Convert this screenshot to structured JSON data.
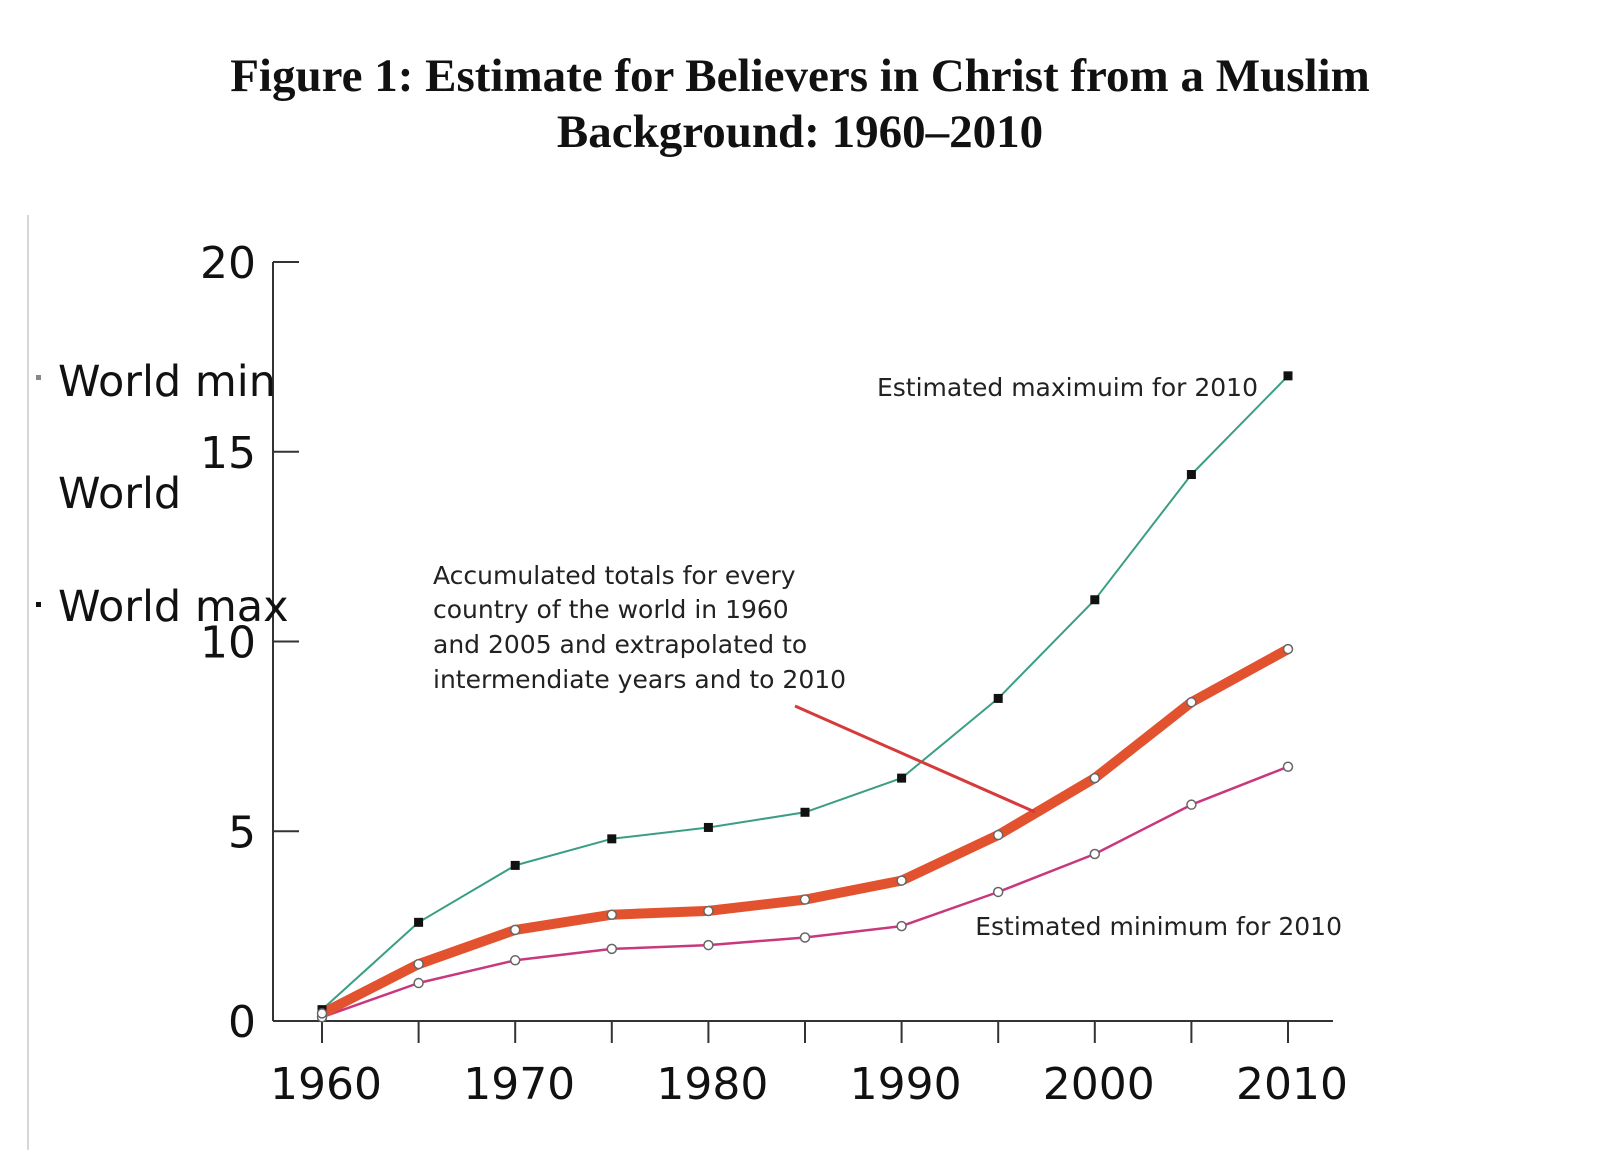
{
  "chart_data": {
    "type": "line",
    "title": "Figure 1: Estimate for Believers in Christ from a Muslim Background: 1960–2010",
    "title_lines": [
      "Figure 1: Estimate for Believers in Christ from a Muslim",
      "Background: 1960–2010"
    ],
    "xlabel": "",
    "ylabel": "",
    "x": [
      1960,
      1965,
      1970,
      1975,
      1980,
      1985,
      1990,
      1995,
      2000,
      2005,
      2010
    ],
    "xlim": [
      1960,
      2010
    ],
    "ylim": [
      0,
      20
    ],
    "x_ticks": [
      "1960",
      "1970",
      "1980",
      "1990",
      "2000",
      "2010"
    ],
    "y_ticks": [
      "0",
      "5",
      "10",
      "15",
      "20"
    ],
    "grid": false,
    "legend": {
      "placement": "left",
      "entries": [
        "World min",
        "World",
        "World max"
      ]
    },
    "series": [
      {
        "name": "World max",
        "color": "#3a9e85",
        "marker": "square-black",
        "values": [
          0.3,
          2.6,
          4.1,
          4.8,
          5.1,
          5.5,
          6.4,
          8.5,
          11.1,
          14.4,
          17.0
        ]
      },
      {
        "name": "World",
        "color": "#e3522e",
        "marker": "circle-open",
        "values": [
          0.2,
          1.5,
          2.4,
          2.8,
          2.9,
          3.2,
          3.7,
          4.9,
          6.4,
          8.4,
          9.8
        ]
      },
      {
        "name": "World min",
        "color": "#c8387d",
        "marker": "circle-open",
        "values": [
          0.1,
          1.0,
          1.6,
          1.9,
          2.0,
          2.2,
          2.5,
          3.4,
          4.4,
          5.7,
          6.7
        ]
      }
    ],
    "annotations": {
      "max_label": "Estimated maximuim for 2010",
      "min_label": "Estimated minimum for 2010",
      "accumulated_lines": [
        "Accumulated totals for every",
        "country of the world in 1960",
        "and 2005 and extrapolated to",
        "intermendiate years and to 2010"
      ],
      "arrow_color": "#d63a3a"
    }
  }
}
